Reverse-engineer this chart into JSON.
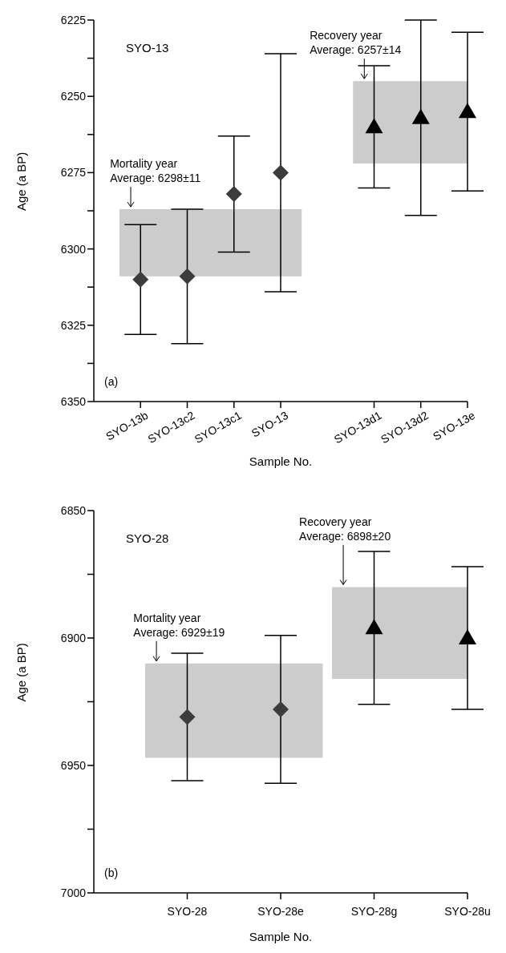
{
  "chart_data": [
    {
      "type": "scatter",
      "categories": [
        "SYO-13b",
        "SYO-13c2",
        "SYO-13c1",
        "SYO-13",
        null,
        "SYO-13d1",
        "SYO-13d2",
        "SYO-13e"
      ],
      "series": [
        {
          "color": "#3c3c3c",
          "marker": "diamond",
          "values": [
            6310,
            6309,
            6282,
            6275,
            null,
            null,
            null,
            null
          ],
          "errors": [
            18,
            22,
            19,
            39,
            null,
            null,
            null,
            null
          ]
        },
        {
          "color": "#000000",
          "marker": "triangle",
          "values": [
            null,
            null,
            null,
            null,
            null,
            6260,
            6257,
            6255
          ],
          "errors": [
            null,
            null,
            null,
            null,
            null,
            20,
            32,
            26
          ]
        }
      ],
      "xlabel": "Sample No.",
      "ylabel": "Age (a BP)",
      "ylim": [
        6350,
        6225
      ],
      "yticks": [
        6225,
        {
          "value": 6237.5,
          "label": null
        },
        6250,
        {
          "value": 6262.5,
          "label": null
        },
        6275,
        {
          "value": 6287.5,
          "label": null
        },
        6300,
        {
          "value": 6312.5,
          "label": null
        },
        6325,
        {
          "value": 6337.5,
          "label": null
        },
        6350
      ],
      "bands": [
        {
          "axis": "y",
          "from": 6287,
          "to": 6309,
          "label": "Mortality year\nAverage: 6298±11",
          "color": "#cccccc"
        },
        {
          "axis": "y",
          "from": 6245,
          "to": 6272,
          "label": "Recovery year\nAverage: 6257±14",
          "color": "#cccccc"
        }
      ],
      "annotations": [
        "SYO-13",
        "(a)"
      ]
    },
    {
      "type": "scatter",
      "categories": [
        "SYO-28",
        "SYO-28e",
        "SYO-28g",
        "SYO-28u"
      ],
      "series": [
        {
          "color": "#3c3c3c",
          "marker": "diamond",
          "values": [
            6931,
            6928,
            null,
            null
          ],
          "errors": [
            25,
            29,
            null,
            null
          ]
        },
        {
          "color": "#000000",
          "marker": "triangle",
          "values": [
            null,
            null,
            6896,
            6900
          ],
          "errors": [
            null,
            null,
            30,
            28
          ]
        }
      ],
      "xlabel": "Sample No.",
      "ylabel": "Age (a BP)",
      "ylim": [
        7000,
        6850
      ],
      "yticks": [
        6850,
        {
          "value": 6875,
          "label": null
        },
        6900,
        {
          "value": 6925,
          "label": null
        },
        6950,
        {
          "value": 6975,
          "label": null
        },
        7000
      ],
      "bands": [
        {
          "axis": "y",
          "from": 6910,
          "to": 6947,
          "label": "Mortality year\nAverage: 6929±19",
          "color": "#cccccc"
        },
        {
          "axis": "y",
          "from": 6880,
          "to": 6916,
          "label": "Recovery year\nAverage: 6898±20",
          "color": "#cccccc"
        }
      ],
      "annotations": [
        "SYO-28",
        "(b)"
      ]
    }
  ]
}
